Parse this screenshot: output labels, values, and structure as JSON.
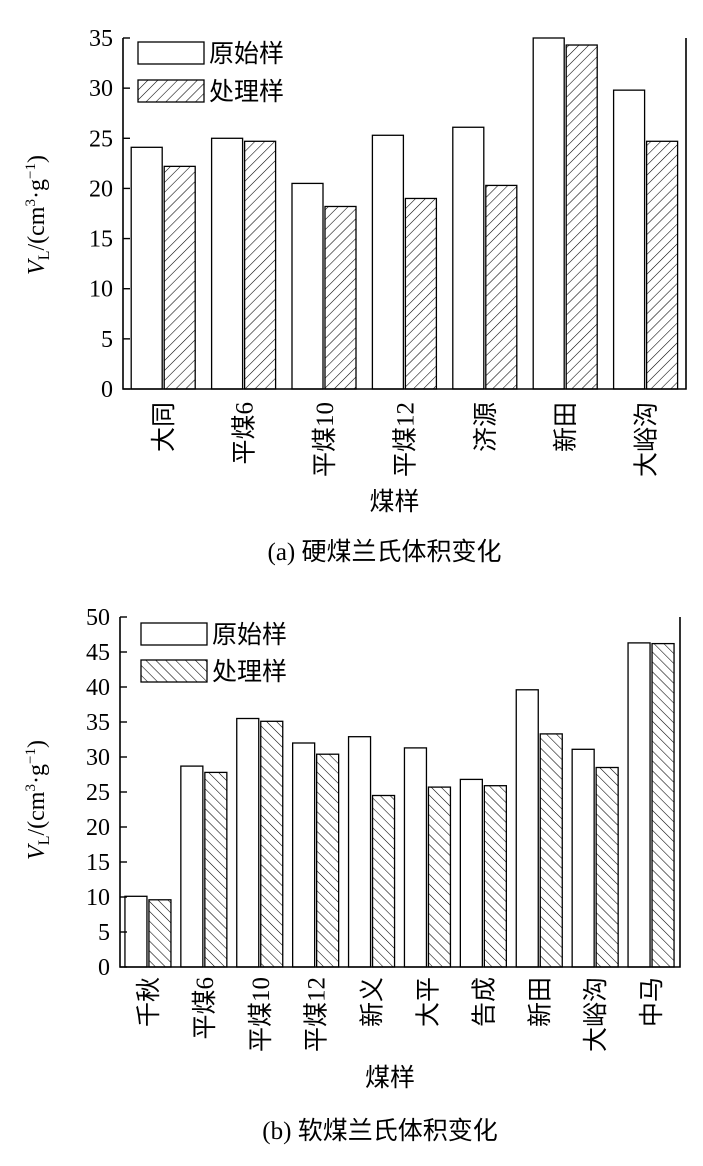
{
  "chart_data": [
    {
      "type": "bar",
      "caption": "(a) 硬煤兰氏体积变化",
      "ylabel_symbol": "V",
      "ylabel_sub": "L",
      "ylabel_unit": "/(cm",
      "ylabel_sup1": "3",
      "ylabel_mid": "·g",
      "ylabel_sup2": "−1",
      "ylabel_close": ")",
      "xlabel": "煤样",
      "ylim": [
        0,
        35
      ],
      "yticks": [
        "0",
        "5",
        "10",
        "15",
        "20",
        "25",
        "30",
        "35"
      ],
      "legend": "top-left",
      "categories": [
        "大同",
        "平煤6",
        "平煤10",
        "平煤12",
        "济源",
        "新田",
        "大峪沟"
      ],
      "series": [
        {
          "name": "原始样",
          "fill": "plain",
          "values": [
            24.1,
            25.0,
            20.5,
            25.3,
            26.1,
            35.0,
            29.8
          ]
        },
        {
          "name": "处理样",
          "fill": "hatch-right",
          "values": [
            22.2,
            24.7,
            18.2,
            19.0,
            20.3,
            34.3,
            24.7
          ]
        }
      ]
    },
    {
      "type": "bar",
      "caption": "(b) 软煤兰氏体积变化",
      "ylabel_symbol": "V",
      "ylabel_sub": "L",
      "ylabel_unit": "/(cm",
      "ylabel_sup1": "3",
      "ylabel_mid": "·g",
      "ylabel_sup2": "−1",
      "ylabel_close": ")",
      "xlabel": "煤样",
      "ylim": [
        0,
        50
      ],
      "yticks": [
        "0",
        "5",
        "10",
        "15",
        "20",
        "25",
        "30",
        "35",
        "40",
        "45",
        "50"
      ],
      "legend": "top-left",
      "categories": [
        "千秋",
        "平煤6",
        "平煤10",
        "平煤12",
        "新义",
        "大平",
        "告成",
        "新田",
        "大峪沟",
        "中马"
      ],
      "series": [
        {
          "name": "原始样",
          "fill": "plain",
          "values": [
            10.1,
            28.7,
            35.5,
            32.0,
            32.9,
            31.3,
            26.8,
            39.6,
            31.1,
            46.3
          ]
        },
        {
          "name": "处理样",
          "fill": "hatch-left",
          "values": [
            9.6,
            27.8,
            35.1,
            30.4,
            24.5,
            25.7,
            25.9,
            33.3,
            28.5,
            46.2
          ]
        }
      ]
    }
  ]
}
